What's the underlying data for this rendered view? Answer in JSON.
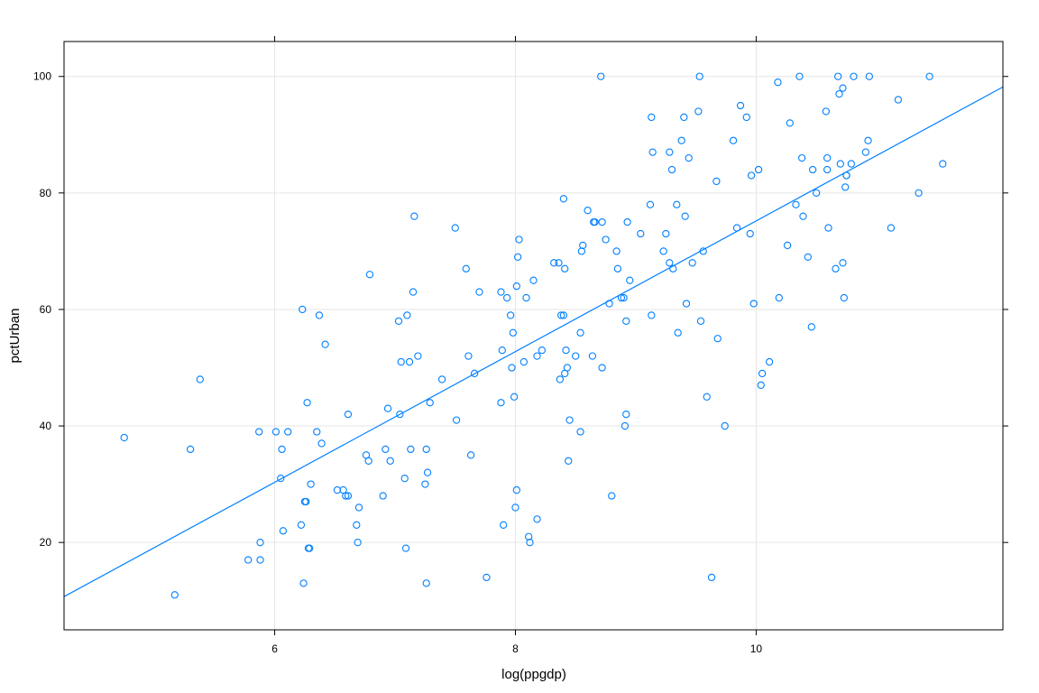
{
  "chart_data": {
    "type": "scatter",
    "xlabel": "log(ppgdp)",
    "ylabel": "pctUrban",
    "xlim": [
      4.25,
      12.05
    ],
    "ylim": [
      5,
      106
    ],
    "xticks": [
      6,
      8,
      10
    ],
    "yticks": [
      20,
      40,
      60,
      80,
      100
    ],
    "grid": true,
    "colors": {
      "points": "#0080ff",
      "line": "#0080ff",
      "grid": "#e6e6e6",
      "frame": "#000000"
    },
    "fit_line": {
      "x": [
        4.25,
        12.05
      ],
      "y": [
        10.7,
        98.2
      ]
    },
    "points": [
      [
        4.75,
        38
      ],
      [
        5.17,
        11
      ],
      [
        5.3,
        36
      ],
      [
        5.38,
        48
      ],
      [
        5.78,
        17
      ],
      [
        5.87,
        39
      ],
      [
        5.88,
        20
      ],
      [
        5.88,
        17
      ],
      [
        6.01,
        39
      ],
      [
        6.05,
        31
      ],
      [
        6.06,
        36
      ],
      [
        6.07,
        22
      ],
      [
        6.11,
        39
      ],
      [
        6.22,
        23
      ],
      [
        6.23,
        60
      ],
      [
        6.24,
        13
      ],
      [
        6.25,
        27
      ],
      [
        6.26,
        27
      ],
      [
        6.27,
        44
      ],
      [
        6.28,
        19
      ],
      [
        6.29,
        19
      ],
      [
        6.3,
        30
      ],
      [
        6.35,
        39
      ],
      [
        6.37,
        59
      ],
      [
        6.39,
        37
      ],
      [
        6.42,
        54
      ],
      [
        6.52,
        29
      ],
      [
        6.57,
        29
      ],
      [
        6.59,
        28
      ],
      [
        6.61,
        28
      ],
      [
        6.61,
        42
      ],
      [
        6.68,
        23
      ],
      [
        6.69,
        20
      ],
      [
        6.7,
        26
      ],
      [
        6.76,
        35
      ],
      [
        6.78,
        34
      ],
      [
        6.79,
        66
      ],
      [
        6.9,
        28
      ],
      [
        6.92,
        36
      ],
      [
        6.94,
        43
      ],
      [
        6.96,
        34
      ],
      [
        7.03,
        58
      ],
      [
        7.04,
        42
      ],
      [
        7.05,
        51
      ],
      [
        7.08,
        31
      ],
      [
        7.09,
        19
      ],
      [
        7.1,
        59
      ],
      [
        7.12,
        51
      ],
      [
        7.13,
        36
      ],
      [
        7.15,
        63
      ],
      [
        7.16,
        76
      ],
      [
        7.19,
        52
      ],
      [
        7.25,
        30
      ],
      [
        7.26,
        36
      ],
      [
        7.26,
        13
      ],
      [
        7.27,
        32
      ],
      [
        7.29,
        44
      ],
      [
        7.39,
        48
      ],
      [
        7.5,
        74
      ],
      [
        7.51,
        41
      ],
      [
        7.59,
        67
      ],
      [
        7.61,
        52
      ],
      [
        7.63,
        35
      ],
      [
        7.66,
        49
      ],
      [
        7.7,
        63
      ],
      [
        7.76,
        14
      ],
      [
        7.88,
        63
      ],
      [
        7.88,
        44
      ],
      [
        7.89,
        53
      ],
      [
        7.9,
        23
      ],
      [
        7.93,
        62
      ],
      [
        7.96,
        59
      ],
      [
        7.97,
        50
      ],
      [
        7.98,
        56
      ],
      [
        7.99,
        45
      ],
      [
        8.0,
        26
      ],
      [
        8.01,
        29
      ],
      [
        8.01,
        64
      ],
      [
        8.02,
        69
      ],
      [
        8.03,
        72
      ],
      [
        8.07,
        51
      ],
      [
        8.09,
        62
      ],
      [
        8.11,
        21
      ],
      [
        8.12,
        20
      ],
      [
        8.15,
        65
      ],
      [
        8.18,
        24
      ],
      [
        8.18,
        52
      ],
      [
        8.22,
        53
      ],
      [
        8.32,
        68
      ],
      [
        8.36,
        68
      ],
      [
        8.37,
        48
      ],
      [
        8.38,
        59
      ],
      [
        8.4,
        59
      ],
      [
        8.4,
        79
      ],
      [
        8.41,
        49
      ],
      [
        8.41,
        67
      ],
      [
        8.42,
        53
      ],
      [
        8.43,
        50
      ],
      [
        8.44,
        34
      ],
      [
        8.45,
        41
      ],
      [
        8.5,
        52
      ],
      [
        8.54,
        39
      ],
      [
        8.54,
        56
      ],
      [
        8.55,
        70
      ],
      [
        8.56,
        71
      ],
      [
        8.6,
        77
      ],
      [
        8.64,
        52
      ],
      [
        8.65,
        75
      ],
      [
        8.66,
        75
      ],
      [
        8.71,
        100
      ],
      [
        8.72,
        75
      ],
      [
        8.72,
        50
      ],
      [
        8.75,
        72
      ],
      [
        8.78,
        61
      ],
      [
        8.8,
        28
      ],
      [
        8.84,
        70
      ],
      [
        8.85,
        67
      ],
      [
        8.88,
        62
      ],
      [
        8.9,
        62
      ],
      [
        8.91,
        40
      ],
      [
        8.92,
        58
      ],
      [
        8.92,
        42
      ],
      [
        8.93,
        75
      ],
      [
        8.95,
        65
      ],
      [
        9.04,
        73
      ],
      [
        9.12,
        78
      ],
      [
        9.13,
        93
      ],
      [
        9.13,
        59
      ],
      [
        9.14,
        87
      ],
      [
        9.23,
        70
      ],
      [
        9.25,
        73
      ],
      [
        9.28,
        87
      ],
      [
        9.28,
        68
      ],
      [
        9.3,
        84
      ],
      [
        9.31,
        67
      ],
      [
        9.34,
        78
      ],
      [
        9.35,
        56
      ],
      [
        9.38,
        89
      ],
      [
        9.4,
        93
      ],
      [
        9.41,
        76
      ],
      [
        9.42,
        61
      ],
      [
        9.44,
        86
      ],
      [
        9.47,
        68
      ],
      [
        9.52,
        94
      ],
      [
        9.53,
        100
      ],
      [
        9.54,
        58
      ],
      [
        9.56,
        70
      ],
      [
        9.59,
        45
      ],
      [
        9.63,
        14
      ],
      [
        9.67,
        82
      ],
      [
        9.68,
        55
      ],
      [
        9.74,
        40
      ],
      [
        9.81,
        89
      ],
      [
        9.84,
        74
      ],
      [
        9.87,
        95
      ],
      [
        9.92,
        93
      ],
      [
        9.95,
        73
      ],
      [
        9.96,
        83
      ],
      [
        9.98,
        61
      ],
      [
        10.02,
        84
      ],
      [
        10.04,
        47
      ],
      [
        10.05,
        49
      ],
      [
        10.11,
        51
      ],
      [
        10.18,
        99
      ],
      [
        10.19,
        62
      ],
      [
        10.26,
        71
      ],
      [
        10.28,
        92
      ],
      [
        10.33,
        78
      ],
      [
        10.36,
        100
      ],
      [
        10.38,
        86
      ],
      [
        10.39,
        76
      ],
      [
        10.43,
        69
      ],
      [
        10.46,
        57
      ],
      [
        10.47,
        84
      ],
      [
        10.5,
        80
      ],
      [
        10.58,
        94
      ],
      [
        10.59,
        86
      ],
      [
        10.59,
        84
      ],
      [
        10.6,
        74
      ],
      [
        10.66,
        67
      ],
      [
        10.68,
        100
      ],
      [
        10.69,
        97
      ],
      [
        10.7,
        85
      ],
      [
        10.72,
        68
      ],
      [
        10.72,
        98
      ],
      [
        10.73,
        62
      ],
      [
        10.74,
        81
      ],
      [
        10.75,
        83
      ],
      [
        10.75,
        83
      ],
      [
        10.79,
        85
      ],
      [
        10.81,
        100
      ],
      [
        10.91,
        87
      ],
      [
        10.93,
        89
      ],
      [
        10.94,
        100
      ],
      [
        11.12,
        74
      ],
      [
        11.18,
        96
      ],
      [
        11.35,
        80
      ],
      [
        11.44,
        100
      ],
      [
        11.55,
        85
      ]
    ]
  }
}
